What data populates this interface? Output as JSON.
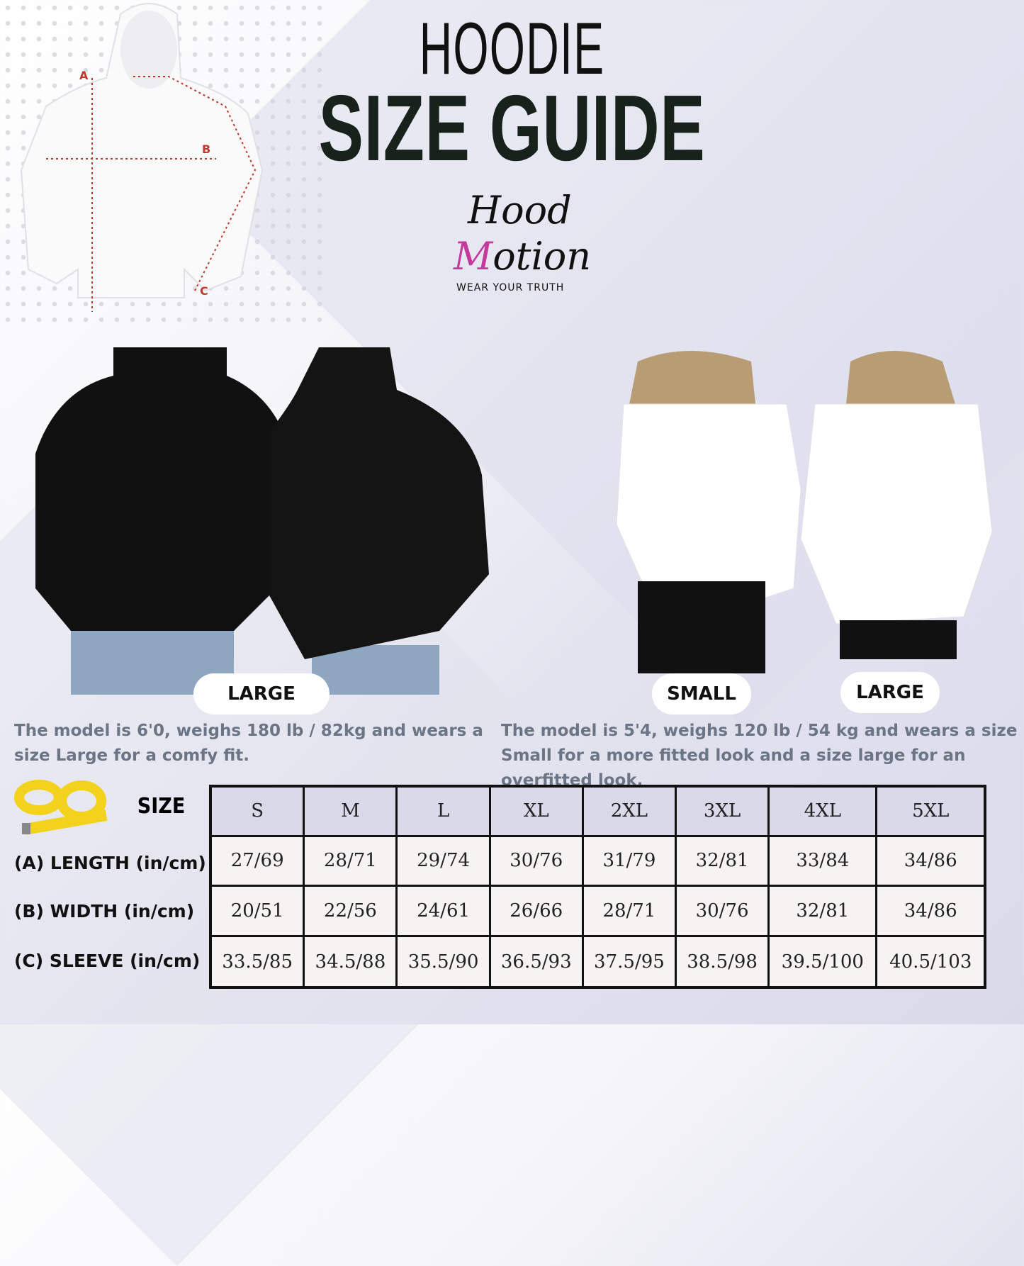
{
  "title_line1": "HOODIE",
  "title_line2": "SIZE GUIDE",
  "logo": {
    "line1": "Hood",
    "line2_accent": "M",
    "line2_rest": "otion",
    "tagline": "WEAR YOUR TRUTH",
    "accent_color": "#c43a9a"
  },
  "diagram": {
    "labels": [
      "A",
      "B",
      "C"
    ],
    "line_color": "#c0392b"
  },
  "men": {
    "label": "LARGE",
    "caption": "The model is 6'0, weighs 180 lb / 82kg and wears a size Large for a comfy fit."
  },
  "women": {
    "label_small": "SMALL",
    "label_large": "LARGE",
    "caption": "The model is 5'4, weighs 120 lb / 54 kg and wears a size Small for a more fitted look and a size large for an overfitted look."
  },
  "table": {
    "size_label": "SIZE",
    "sizes": [
      "S",
      "M",
      "L",
      "XL",
      "2XL",
      "3XL",
      "4XL",
      "5XL"
    ],
    "rows": [
      {
        "label": "(A) LENGTH (in/cm)",
        "values": [
          "27/69",
          "28/71",
          "29/74",
          "30/76",
          "31/79",
          "32/81",
          "33/84",
          "34/86"
        ]
      },
      {
        "label": "(B) WIDTH (in/cm)",
        "values": [
          "20/51",
          "22/56",
          "24/61",
          "26/66",
          "28/71",
          "30/76",
          "32/81",
          "34/86"
        ]
      },
      {
        "label": "(C) SLEEVE (in/cm)",
        "values": [
          "33.5/85",
          "34.5/88",
          "35.5/90",
          "36.5/93",
          "37.5/95",
          "38.5/98",
          "39.5/100",
          "40.5/103"
        ]
      }
    ]
  }
}
